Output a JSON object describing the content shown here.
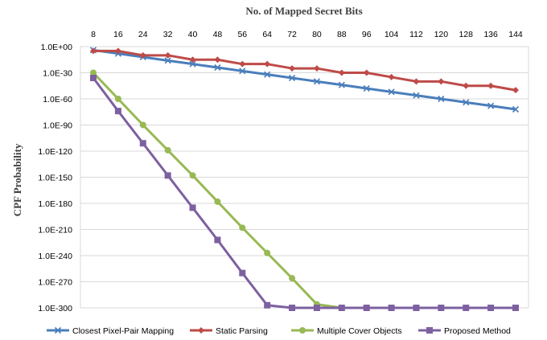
{
  "chart_data": {
    "type": "line",
    "title": "No. of Mapped Secret Bits",
    "ylabel": "CPF Probability",
    "xlabel": "",
    "x_axis_position": "top",
    "y_scale": "log",
    "categories": [
      "8",
      "16",
      "24",
      "32",
      "40",
      "48",
      "56",
      "64",
      "72",
      "80",
      "88",
      "96",
      "104",
      "112",
      "120",
      "128",
      "136",
      "144"
    ],
    "y_tick_labels": [
      "1.0E+00",
      "1.0E-30",
      "1.0E-60",
      "1.0E-90",
      "1.0E-120",
      "1.0E-150",
      "1.0E-180",
      "1.0E-210",
      "1.0E-240",
      "1.0E-270",
      "1.0E-300"
    ],
    "y_exponent_range": [
      -300,
      0
    ],
    "grid": true,
    "legend_position": "bottom",
    "series": [
      {
        "name": "Closest Pixel-Pair Mapping",
        "color": "#4a7ebb",
        "marker": "x",
        "exponents": [
          -4,
          -8,
          -12,
          -16,
          -20,
          -24,
          -28,
          -32,
          -36,
          -40,
          -44,
          -48,
          -52,
          -56,
          -60,
          -64,
          -68,
          -72
        ]
      },
      {
        "name": "Static Parsing",
        "color": "#be4b48",
        "marker": "diamond",
        "exponents": [
          -5,
          -5,
          -10,
          -10,
          -15,
          -15,
          -20,
          -20,
          -25,
          -25,
          -30,
          -30,
          -35,
          -40,
          -40,
          -45,
          -45,
          -50
        ]
      },
      {
        "name": "Multiple Cover Objects",
        "color": "#98b954",
        "marker": "circle",
        "exponents": [
          -30,
          -60,
          -90,
          -119,
          -148,
          -178,
          -208,
          -237,
          -266,
          -296,
          -300,
          -300,
          -300,
          -300,
          -300,
          -300,
          -300,
          -300
        ]
      },
      {
        "name": "Proposed Method",
        "color": "#7d60a0",
        "marker": "square",
        "exponents": [
          -36,
          -74,
          -111,
          -148,
          -185,
          -222,
          -260,
          -297,
          -300,
          -300,
          -300,
          -300,
          -300,
          -300,
          -300,
          -300,
          -300,
          -300
        ]
      }
    ]
  }
}
